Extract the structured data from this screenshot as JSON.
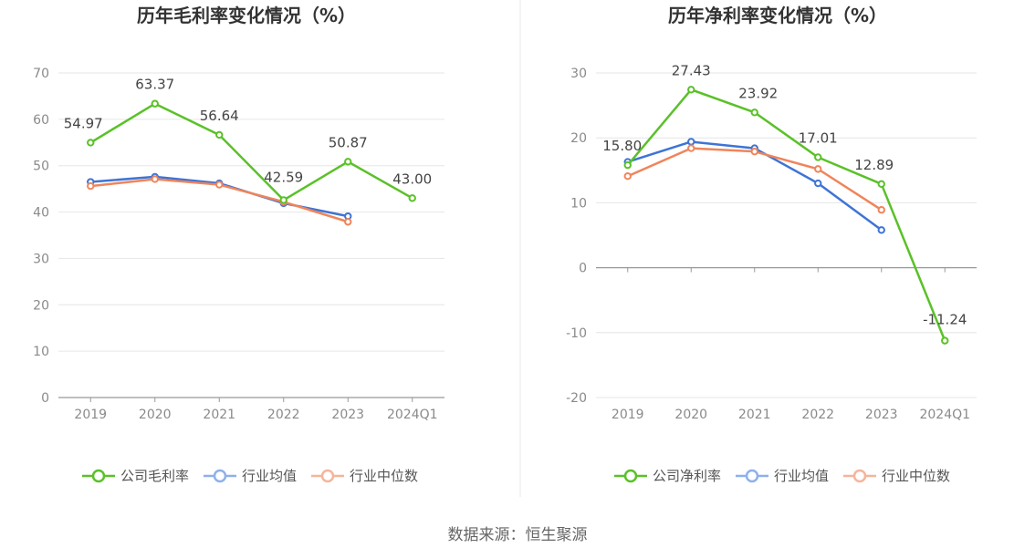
{
  "source": "数据来源：恒生聚源",
  "chart_data": [
    {
      "type": "line",
      "title": "历年毛利率变化情况（%）",
      "categories": [
        "2019",
        "2020",
        "2021",
        "2022",
        "2023",
        "2024Q1"
      ],
      "ylim": [
        0,
        70
      ],
      "yticks": [
        0,
        10,
        20,
        30,
        40,
        50,
        60,
        70
      ],
      "series": [
        {
          "name": "公司毛利率",
          "color": "#5ac128",
          "values": [
            54.97,
            63.37,
            56.64,
            42.59,
            50.87,
            43.0
          ],
          "labels": [
            "54.97",
            "63.37",
            "56.64",
            "42.59",
            "50.87",
            "43.00"
          ]
        },
        {
          "name": "行业均值",
          "color": "#3e74d6",
          "values": [
            46.5,
            47.6,
            46.2,
            41.9,
            39.1,
            null
          ]
        },
        {
          "name": "行业中位数",
          "color": "#f0845a",
          "values": [
            45.6,
            47.1,
            45.9,
            42.2,
            37.9,
            null
          ]
        }
      ]
    },
    {
      "type": "line",
      "title": "历年净利率变化情况（%）",
      "categories": [
        "2019",
        "2020",
        "2021",
        "2022",
        "2023",
        "2024Q1"
      ],
      "ylim": [
        -20,
        30
      ],
      "yticks": [
        -20,
        -10,
        0,
        10,
        20,
        30
      ],
      "series": [
        {
          "name": "公司净利率",
          "color": "#5ac128",
          "values": [
            15.8,
            27.43,
            23.92,
            17.01,
            12.89,
            -11.24
          ],
          "labels": [
            "15.80",
            "27.43",
            "23.92",
            "17.01",
            "12.89",
            "-11.24"
          ]
        },
        {
          "name": "行业均值",
          "color": "#3e74d6",
          "values": [
            16.3,
            19.4,
            18.4,
            13.0,
            5.8,
            null
          ]
        },
        {
          "name": "行业中位数",
          "color": "#f0845a",
          "values": [
            14.1,
            18.4,
            17.9,
            15.2,
            8.9,
            null
          ]
        }
      ]
    }
  ]
}
